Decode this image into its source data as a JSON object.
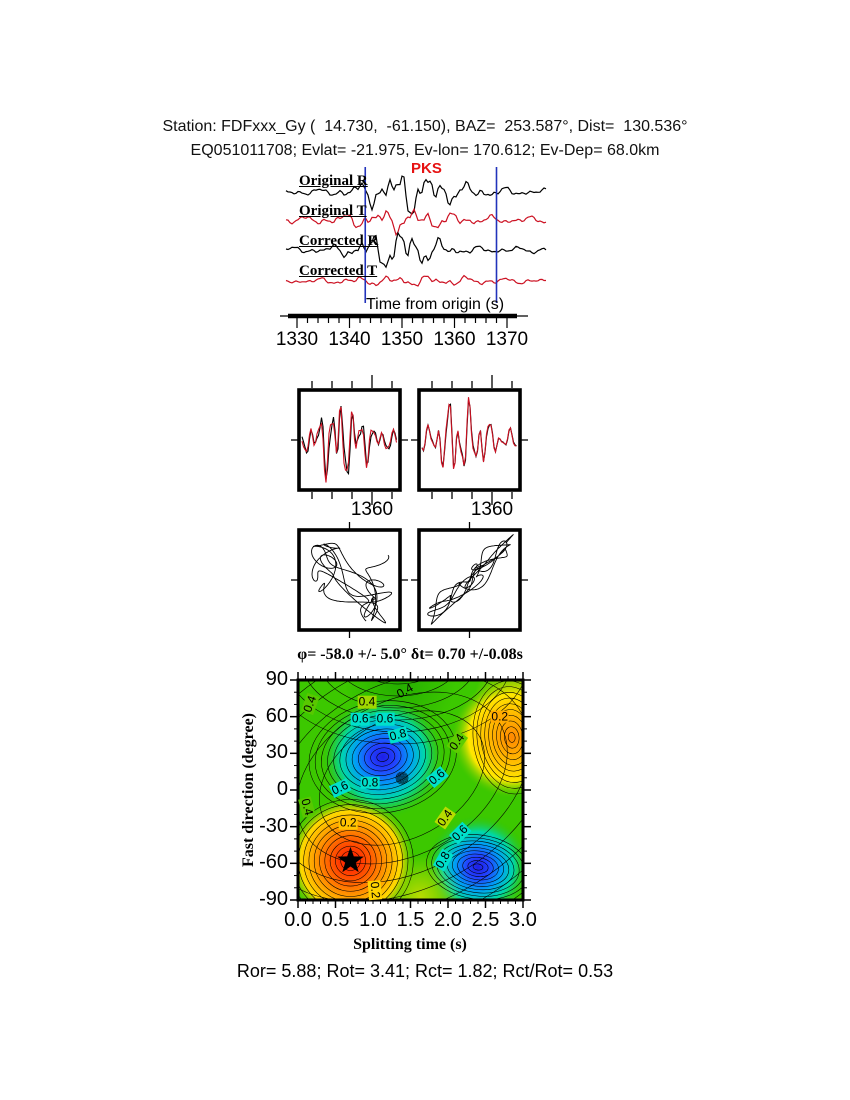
{
  "header": {
    "line1": "Station: FDFxxx_Gy (  14.730,  -61.150), BAZ=  253.587°, Dist=  130.536°",
    "line2": "EQ051011708; Evlat= -21.975, Ev-lon= 170.612; Ev-Dep= 68.0km"
  },
  "footer": {
    "stats": "Ror= 5.88; Rot= 3.41; Rct= 1.82; Rct/Rot= 0.53"
  },
  "colors": {
    "trace_black": "#000000",
    "trace_red": "#cc1122",
    "window_marker_blue": "#2233bb",
    "phase_label_red": "#e61212",
    "contour_base_green": "#3cc800"
  },
  "chart_data": [
    {
      "type": "line",
      "name": "seismogram-traces",
      "xlabel": "Time from origin (s)",
      "x_ticks": [
        1330,
        1340,
        1350,
        1360,
        1370
      ],
      "xlim": [
        1328,
        1372
      ],
      "series": [
        "Original R",
        "Original T",
        "Corrected R",
        "Corrected T"
      ],
      "series_colors": [
        "#000000",
        "#cc1122",
        "#000000",
        "#cc1122"
      ],
      "phase": "PKS",
      "window_s": [
        1343,
        1368
      ]
    },
    {
      "type": "line",
      "name": "waveform-window-overlays",
      "panels": [
        "original R-T overlay",
        "corrected R-T overlay"
      ],
      "x_tick": 1360
    },
    {
      "type": "scatter",
      "name": "particle-motion",
      "panels": [
        "original",
        "corrected"
      ]
    },
    {
      "type": "heatmap",
      "name": "splitting-error-surface",
      "title": "φ= -58.0 +/- 5.0° δt= 0.70 +/-0.08s",
      "xlabel": "Splitting time (s)",
      "ylabel": "Fast direction (degree)",
      "x_ticks": [
        "0.0",
        "0.5",
        "1.0",
        "1.5",
        "2.0",
        "2.5",
        "3.0"
      ],
      "y_ticks": [
        "90",
        "60",
        "30",
        "0",
        "-30",
        "-60",
        "-90"
      ],
      "xlim": [
        0,
        3
      ],
      "ylim": [
        -90,
        90
      ],
      "best_phi": -58.0,
      "phi_err": 5.0,
      "best_dt": 0.7,
      "dt_err": 0.08,
      "star": {
        "dt": 0.7,
        "phi": -58
      },
      "contour_levels": [
        0.2,
        0.4,
        0.6,
        0.8
      ],
      "minima": [
        {
          "dt": 1.13,
          "phi": 27
        },
        {
          "dt": 2.4,
          "phi": -63
        }
      ],
      "maxima": [
        {
          "dt": 0.7,
          "phi": -58
        },
        {
          "dt": 2.85,
          "phi": 43
        }
      ],
      "annotations": [
        {
          "text": "0.4",
          "dt": 1.43,
          "phi": 81,
          "bg": "",
          "rot": -30
        },
        {
          "text": "0.4",
          "dt": 0.92,
          "phi": 72,
          "bg": "#9fd800",
          "rot": 0
        },
        {
          "text": "0.6",
          "dt": 0.83,
          "phi": 58,
          "bg": "#00e0cc",
          "rot": 0
        },
        {
          "text": "0.6",
          "dt": 1.16,
          "phi": 58,
          "bg": "#00e0cc",
          "rot": 0
        },
        {
          "text": "0.8",
          "dt": 1.33,
          "phi": 45,
          "bg": "#00e0cc",
          "rot": -15
        },
        {
          "text": "0.4",
          "dt": 0.16,
          "phi": 70,
          "bg": "#58c800",
          "rot": -70
        },
        {
          "text": "0.2",
          "dt": 2.69,
          "phi": 60,
          "bg": "#ffaa00",
          "rot": 0
        },
        {
          "text": "0.4",
          "dt": 2.12,
          "phi": 39,
          "bg": "#5ecc00",
          "rot": -55
        },
        {
          "text": "0.6",
          "dt": 1.85,
          "phi": 11,
          "bg": "#00e0cc",
          "rot": -40
        },
        {
          "text": "0.8",
          "dt": 0.96,
          "phi": 6,
          "bg": "#00e0cc",
          "rot": 0
        },
        {
          "text": "0.6",
          "dt": 0.56,
          "phi": 2,
          "bg": "#00e0cc",
          "rot": -25
        },
        {
          "text": "0.4",
          "dt": 0.12,
          "phi": -14,
          "bg": "#58c800",
          "rot": 75
        },
        {
          "text": "0.2",
          "dt": 0.67,
          "phi": -27,
          "bg": "#ffc400",
          "rot": 0
        },
        {
          "text": "0.4",
          "dt": 1.96,
          "phi": -23,
          "bg": "#b7dc00",
          "rot": -55
        },
        {
          "text": "0.6",
          "dt": 2.16,
          "phi": -35,
          "bg": "#00e0cc",
          "rot": -45
        },
        {
          "text": "0.8",
          "dt": 1.93,
          "phi": -57,
          "bg": "#00e0cc",
          "rot": -60
        },
        {
          "text": "0.2",
          "dt": 1.03,
          "phi": -82,
          "bg": "#ffd400",
          "rot": 85
        }
      ]
    }
  ]
}
